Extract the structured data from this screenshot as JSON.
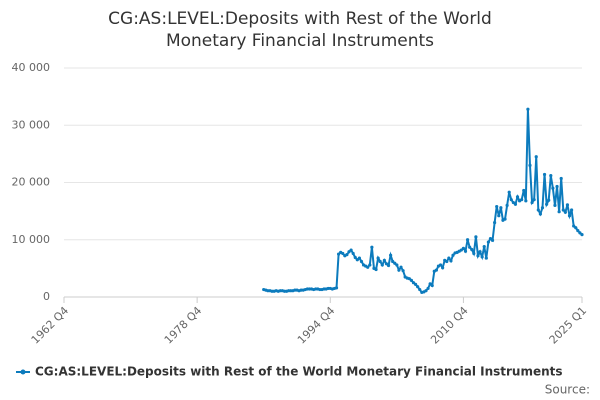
{
  "chart_data": {
    "type": "line",
    "title": "CG:AS:LEVEL:Deposits with Rest of the World Monetary Financial Instruments",
    "source": "Source:",
    "categories": [
      "1962 Q4",
      null,
      null,
      null,
      null,
      null,
      null,
      null,
      null,
      null,
      null,
      null,
      null,
      null,
      null,
      null,
      null,
      null,
      null,
      null,
      null,
      null,
      null,
      null,
      null,
      null,
      null,
      null,
      null,
      null,
      null,
      null,
      null,
      null,
      null,
      null,
      null,
      null,
      null,
      null,
      null,
      null,
      null,
      null,
      null,
      null,
      null,
      null,
      null,
      null,
      null,
      null,
      null,
      null,
      null,
      null,
      null,
      null,
      null,
      null,
      null,
      null,
      null,
      null,
      "1978 Q4",
      null,
      null,
      null,
      null,
      null,
      null,
      null,
      null,
      null,
      null,
      null,
      null,
      null,
      null,
      null,
      null,
      null,
      null,
      null,
      null,
      null,
      null,
      null,
      null,
      null,
      null,
      null,
      null,
      null,
      null,
      null,
      null,
      null,
      null,
      null,
      null,
      null,
      null,
      null,
      null,
      null,
      null,
      null,
      null,
      null,
      null,
      null,
      null,
      null,
      null,
      null,
      null,
      null,
      null,
      null,
      null,
      null,
      null,
      null,
      null,
      null,
      null,
      null,
      "1994 Q4",
      null,
      null,
      null,
      null,
      null,
      null,
      null,
      null,
      null,
      null,
      null,
      null,
      null,
      null,
      null,
      null,
      null,
      null,
      null,
      null,
      null,
      null,
      null,
      null,
      null,
      null,
      null,
      null,
      null,
      null,
      null,
      null,
      null,
      null,
      null,
      null,
      null,
      null,
      null,
      null,
      null,
      null,
      null,
      null,
      null,
      null,
      null,
      null,
      null,
      null,
      null,
      null,
      null,
      null,
      null,
      null,
      null,
      null,
      null,
      null,
      null,
      null,
      null,
      "2010 Q4",
      null,
      null,
      null,
      null,
      null,
      null,
      null,
      null,
      null,
      null,
      null,
      null,
      null,
      null,
      null,
      null,
      null,
      null,
      null,
      null,
      null,
      null,
      null,
      null,
      null,
      null,
      null,
      null,
      null,
      null,
      null,
      null,
      null,
      null,
      null,
      null,
      null,
      null,
      null,
      null,
      null,
      null,
      null,
      null,
      null,
      null,
      null,
      null,
      null,
      null,
      null,
      null,
      null,
      null,
      null,
      null,
      "2025 Q1"
    ],
    "series": [
      {
        "name": "CG:AS:LEVEL:Deposits with Rest of the World Monetary Financial Instruments",
        "color": "#0c7bbd",
        "values": [
          null,
          null,
          null,
          null,
          null,
          null,
          null,
          null,
          null,
          null,
          null,
          null,
          null,
          null,
          null,
          null,
          null,
          null,
          null,
          null,
          null,
          null,
          null,
          null,
          null,
          null,
          null,
          null,
          null,
          null,
          null,
          null,
          null,
          null,
          null,
          null,
          null,
          null,
          null,
          null,
          null,
          null,
          null,
          null,
          null,
          null,
          null,
          null,
          null,
          null,
          null,
          null,
          null,
          null,
          null,
          null,
          null,
          null,
          null,
          null,
          null,
          null,
          null,
          null,
          null,
          null,
          null,
          null,
          null,
          null,
          null,
          null,
          null,
          null,
          null,
          null,
          null,
          null,
          null,
          null,
          null,
          null,
          null,
          null,
          null,
          null,
          null,
          null,
          null,
          null,
          null,
          null,
          null,
          null,
          null,
          null,
          1300,
          1200,
          1100,
          1100,
          1000,
          1000,
          1100,
          1000,
          1100,
          1100,
          1000,
          1000,
          1100,
          1100,
          1100,
          1200,
          1200,
          1100,
          1200,
          1200,
          1300,
          1400,
          1400,
          1400,
          1300,
          1400,
          1400,
          1300,
          1300,
          1400,
          1400,
          1500,
          1500,
          1400,
          1500,
          1600,
          7500,
          7800,
          7600,
          7200,
          7400,
          7900,
          8200,
          7600,
          6900,
          6500,
          6800,
          6200,
          5600,
          5400,
          5200,
          5600,
          8700,
          5000,
          4800,
          6800,
          6200,
          5600,
          6400,
          5800,
          5500,
          7300,
          6200,
          5900,
          5600,
          4700,
          5200,
          4600,
          3500,
          3300,
          3200,
          2900,
          2500,
          2200,
          1800,
          1300,
          800,
          900,
          1100,
          1500,
          2300,
          2000,
          4500,
          4700,
          5400,
          5600,
          5100,
          6400,
          6200,
          6800,
          6300,
          7300,
          7700,
          7800,
          8000,
          8200,
          8500,
          8000,
          10000,
          8700,
          8300,
          7600,
          10500,
          7200,
          7900,
          7000,
          8800,
          6800,
          9600,
          10200,
          9900,
          13000,
          15800,
          14200,
          15600,
          13400,
          13600,
          16000,
          18300,
          17000,
          16500,
          16200,
          17500,
          16800,
          17000,
          18600,
          16800,
          32800,
          23000,
          16500,
          17000,
          24500,
          15200,
          14500,
          15600,
          21400,
          16200,
          16900,
          21200,
          19000,
          16000,
          19300,
          14900,
          20700,
          15200,
          14800,
          16100,
          14200,
          15200,
          12400,
          12100,
          11600,
          11200,
          10900
        ]
      }
    ],
    "ylim": [
      0,
      40000
    ],
    "yticks": [
      0,
      {
        "value": 10000,
        "label": "10 000"
      },
      {
        "value": 20000,
        "label": "20 000"
      },
      {
        "value": 30000,
        "label": "30 000"
      },
      {
        "value": 40000,
        "label": "40 000"
      }
    ],
    "grid": true
  }
}
